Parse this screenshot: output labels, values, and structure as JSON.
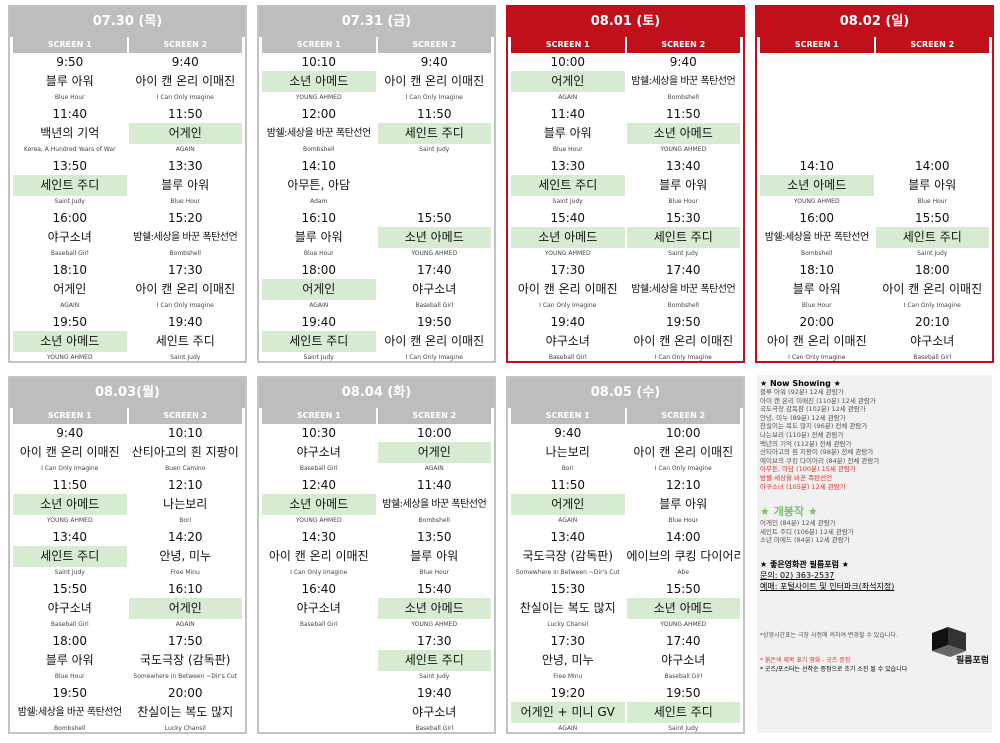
{
  "days": [
    {
      "date": "07.30 (목)",
      "red": false,
      "screens": [
        "SCREEN 1",
        "SCREEN 2"
      ],
      "s1": [
        [
          "9:50",
          "블루 아워",
          "Blue Hour",
          false
        ],
        [
          "11:40",
          "백년의 기억",
          "Korea, A Hundred Years of War",
          false
        ],
        [
          "13:50",
          "세인트 주디",
          "Saint Judy",
          true
        ],
        [
          "16:00",
          "야구소녀",
          "Baseball Girl",
          false
        ],
        [
          "18:10",
          "어게인",
          "AGAIN",
          false
        ],
        [
          "19:50",
          "소년 아메드",
          "YOUNG AHMED",
          true
        ]
      ],
      "s2": [
        [
          "9:40",
          "아이 캔 온리 이매진",
          "I Can Only Imagine",
          false
        ],
        [
          "11:50",
          "어게인",
          "AGAIN",
          true
        ],
        [
          "13:30",
          "블루 아워",
          "Blue Hour",
          false
        ],
        [
          "15:20",
          "밤쉘:세상을 바꾼 폭탄선언",
          "Bombshell",
          false
        ],
        [
          "17:30",
          "아이 캔 온리 이매진",
          "I Can Only Imagine",
          false
        ],
        [
          "19:40",
          "세인트 주디",
          "Saint Judy",
          false
        ]
      ]
    },
    {
      "date": "07.31 (금)",
      "red": false,
      "screens": [
        "SCREEN 1",
        "SCREEN 2"
      ],
      "s1": [
        [
          "10:10",
          "소년 아메드",
          "YOUNG AHMED",
          true
        ],
        [
          "12:00",
          "밤쉘:세상을 바꾼 폭탄선언",
          "Bombshell",
          false
        ],
        [
          "14:10",
          "아무튼, 아담",
          "Adam",
          false
        ],
        [
          "16:10",
          "블루 아워",
          "Blue Hour",
          false
        ],
        [
          "18:00",
          "어게인",
          "AGAIN",
          true
        ],
        [
          "19:40",
          "세인트 주디",
          "Saint Judy",
          true
        ]
      ],
      "s2": [
        [
          "9:40",
          "아이 캔 온리 이매진",
          "I Can Only Imagine",
          false
        ],
        [
          "11:50",
          "세인트 주디",
          "Saint Judy",
          true
        ],
        [
          "",
          "",
          "",
          false
        ],
        [
          "15:50",
          "소년 아메드",
          "YOUNG AHMED",
          true
        ],
        [
          "17:40",
          "야구소녀",
          "Baseball Girl",
          false
        ],
        [
          "19:50",
          "아이 캔 온리 이매진",
          "I Can Only Imagine",
          false
        ]
      ]
    },
    {
      "date": "08.01 (토)",
      "red": true,
      "screens": [
        "SCREEN 1",
        "SCREEN 2"
      ],
      "s1": [
        [
          "10:00",
          "어게인",
          "AGAIN",
          true
        ],
        [
          "11:40",
          "블루 아워",
          "Blue Hour",
          false
        ],
        [
          "13:30",
          "세인트 주디",
          "Saint Judy",
          true
        ],
        [
          "15:40",
          "소년 아메드",
          "YOUNG AHMED",
          true
        ],
        [
          "17:30",
          "아이 캔 온리 이매진",
          "I Can Only Imagine",
          false
        ],
        [
          "19:40",
          "야구소녀",
          "Baseball Girl",
          false
        ]
      ],
      "s2": [
        [
          "9:40",
          "밤쉘:세상을 바꾼 폭탄선언",
          "Bombshell",
          false
        ],
        [
          "11:50",
          "소년 아메드",
          "YOUNG AHMED",
          true
        ],
        [
          "13:40",
          "블루 아워",
          "Blue Hour",
          false
        ],
        [
          "15:30",
          "세인트 주디",
          "Saint Judy",
          true
        ],
        [
          "17:40",
          "밤쉘:세상을 바꾼 폭탄선언",
          "Bombshell",
          false
        ],
        [
          "19:50",
          "아이 캔 온리 이매진",
          "I Can Only Imagine",
          false
        ]
      ]
    },
    {
      "date": "08.02 (일)",
      "red": true,
      "screens": [
        "SCREEN 1",
        "SCREEN 2"
      ],
      "s1": [
        [
          "",
          "",
          "",
          false
        ],
        [
          "",
          "",
          "",
          false
        ],
        [
          "14:10",
          "소년 아메드",
          "YOUNG AHMED",
          true
        ],
        [
          "16:00",
          "밤쉘:세상을 바꾼 폭탄선언",
          "Bombshell",
          false
        ],
        [
          "18:10",
          "블루 아워",
          "Blue Hour",
          false
        ],
        [
          "20:00",
          "아이 캔 온리 이매진",
          "I Can Only Imagine",
          false
        ]
      ],
      "s2": [
        [
          "",
          "",
          "",
          false
        ],
        [
          "",
          "",
          "",
          false
        ],
        [
          "14:00",
          "블루 아워",
          "Blue Hour",
          false
        ],
        [
          "15:50",
          "세인트 주디",
          "Saint Judy",
          true
        ],
        [
          "18:00",
          "아이 캔 온리 이매진",
          "I Can Only Imagine",
          false
        ],
        [
          "20:10",
          "야구소녀",
          "Baseball Girl",
          false
        ]
      ]
    },
    {
      "date": "08.03(월)",
      "red": false,
      "screens": [
        "SCREEN 1",
        "SCREEN 2"
      ],
      "s1": [
        [
          "9:40",
          "아이 캔 온리 이매진",
          "I Can Only Imagine",
          false
        ],
        [
          "11:50",
          "소년 아메드",
          "YOUNG AHMED",
          true
        ],
        [
          "13:40",
          "세인트 주디",
          "Saint Judy",
          true
        ],
        [
          "15:50",
          "야구소녀",
          "Baseball Girl",
          false
        ],
        [
          "18:00",
          "블루 아워",
          "Blue Hour",
          false
        ],
        [
          "19:50",
          "밤쉘:세상을 바꾼 폭탄선언",
          "Bombshell",
          false
        ]
      ],
      "s2": [
        [
          "10:10",
          "산티아고의 흰 지팡이",
          "Buen Camino",
          false
        ],
        [
          "12:10",
          "나는보리",
          "Bori",
          false
        ],
        [
          "14:20",
          "안녕, 미누",
          "Free Minu",
          false
        ],
        [
          "16:10",
          "어게인",
          "AGAIN",
          true
        ],
        [
          "17:50",
          "국도극장 (감독판)",
          "Somewhere in Between ~Dir's Cut",
          false
        ],
        [
          "20:00",
          "찬실이는 복도 많지",
          "Lucky Chansil",
          false
        ]
      ]
    },
    {
      "date": "08.04 (화)",
      "red": false,
      "screens": [
        "SCREEN 1",
        "SCREEN 2"
      ],
      "s1": [
        [
          "10:30",
          "야구소녀",
          "Baseball Girl",
          false
        ],
        [
          "12:40",
          "소년 아메드",
          "YOUNG AHMED",
          true
        ],
        [
          "14:30",
          "아이 캔 온리 이매진",
          "I Can Only Imagine",
          false
        ],
        [
          "16:40",
          "야구소녀",
          "Baseball Girl",
          false
        ],
        [
          "",
          "",
          "",
          false
        ],
        [
          "",
          "",
          "",
          false
        ]
      ],
      "s2": [
        [
          "10:00",
          "어게인",
          "AGAIN",
          true
        ],
        [
          "11:40",
          "밤쉘:세상을 바꾼 폭탄선언",
          "Bombshell",
          false
        ],
        [
          "13:50",
          "블루 아워",
          "Blue Hour",
          false
        ],
        [
          "15:40",
          "소년 아메드",
          "YOUNG AHMED",
          true
        ],
        [
          "17:30",
          "세인트 주디",
          "Saint Judy",
          true
        ],
        [
          "19:40",
          "야구소녀",
          "Baseball Girl",
          false
        ]
      ]
    },
    {
      "date": "08.05 (수)",
      "red": false,
      "screens": [
        "SCREEN 1",
        "SCREEN 2"
      ],
      "s1": [
        [
          "9:40",
          "나는보리",
          "Bori",
          false
        ],
        [
          "11:50",
          "어게인",
          "AGAIN",
          true
        ],
        [
          "13:40",
          "국도극장 (감독판)",
          "Somewhere in Between ~Dir's Cut",
          false
        ],
        [
          "15:30",
          "찬실이는 복도 많지",
          "Lucky Chansil",
          false
        ],
        [
          "17:30",
          "안녕, 미누",
          "Free Minu",
          false
        ],
        [
          "19:20",
          "어게인 + 미니 GV",
          "AGAIN",
          true
        ]
      ],
      "s2": [
        [
          "10:00",
          "아이 캔 온리 이매진",
          "I Can Only Imagine",
          false
        ],
        [
          "12:10",
          "블루 아워",
          "Blue Hour",
          false
        ],
        [
          "14:00",
          "에이브의 쿠킹 다이어리",
          "Abe",
          false
        ],
        [
          "15:50",
          "소년 아메드",
          "YOUNG AHMED",
          true
        ],
        [
          "17:40",
          "야구소녀",
          "Baseball Girl",
          false
        ],
        [
          "19:50",
          "세인트 주디",
          "Saint Judy",
          true
        ]
      ]
    }
  ],
  "info": {
    "now_showing_title": "★ Now Showing ★",
    "now_showing": [
      [
        "블루 아워 (92분) 12세 관람가",
        false
      ],
      [
        "아이 캔 온리 이매진 (110분) 12세 관람가",
        false
      ],
      [
        "국도극장 감독판 (102분) 12세 관람가",
        false
      ],
      [
        "안녕, 미누 (89분) 12세 관람가",
        false
      ],
      [
        "찬실이는 복도 많지 (96분) 전체 관람가",
        false
      ],
      [
        "나는보리 (110분) 전체 관람가",
        false
      ],
      [
        "백년의 기억 (112분) 전체 관람가",
        false
      ],
      [
        "산티아고의 흰 지팡이 (98분) 전체 관람가",
        false
      ],
      [
        "에이브의 쿠킹 다이어리 (84분) 전체 관람가",
        false
      ],
      [
        "아무튼, 아담 (100분) 15세 관람가",
        true
      ],
      [
        "밤쉘:세상을 바꾼 폭탄선언",
        true
      ],
      [
        "야구소녀 (105분) 12세 관람가",
        true
      ]
    ],
    "new_title": "★ 개봉작 ★",
    "new_releases": [
      "어게인 (84분) 12세 관람가",
      "세인트 주디 (106분) 12세 관람가",
      "소년 아메드 (84분) 12세 관람가"
    ],
    "theater_title": "★ 좋은영화관 필름포럼 ★",
    "contact": "문의: 02) 363-2537",
    "booking": "예매: 포털사이트 및 인터파크(좌석지정)",
    "logo_text": "필름포럼",
    "notice": "*상영시간표는 극장 사정에 의하여 변경될 수 있습니다.",
    "note_red": "* 붉은색 제목 표기 영화 - 굿즈 증정",
    "note_goods": "* 굿즈/포스터는 선착순 증정으로 조기 소진 될 수 있습니다"
  },
  "colors": {
    "accent_red": "#c0101b",
    "header_gray": "#bdbdbd",
    "green_row": "#d7ebd3"
  }
}
